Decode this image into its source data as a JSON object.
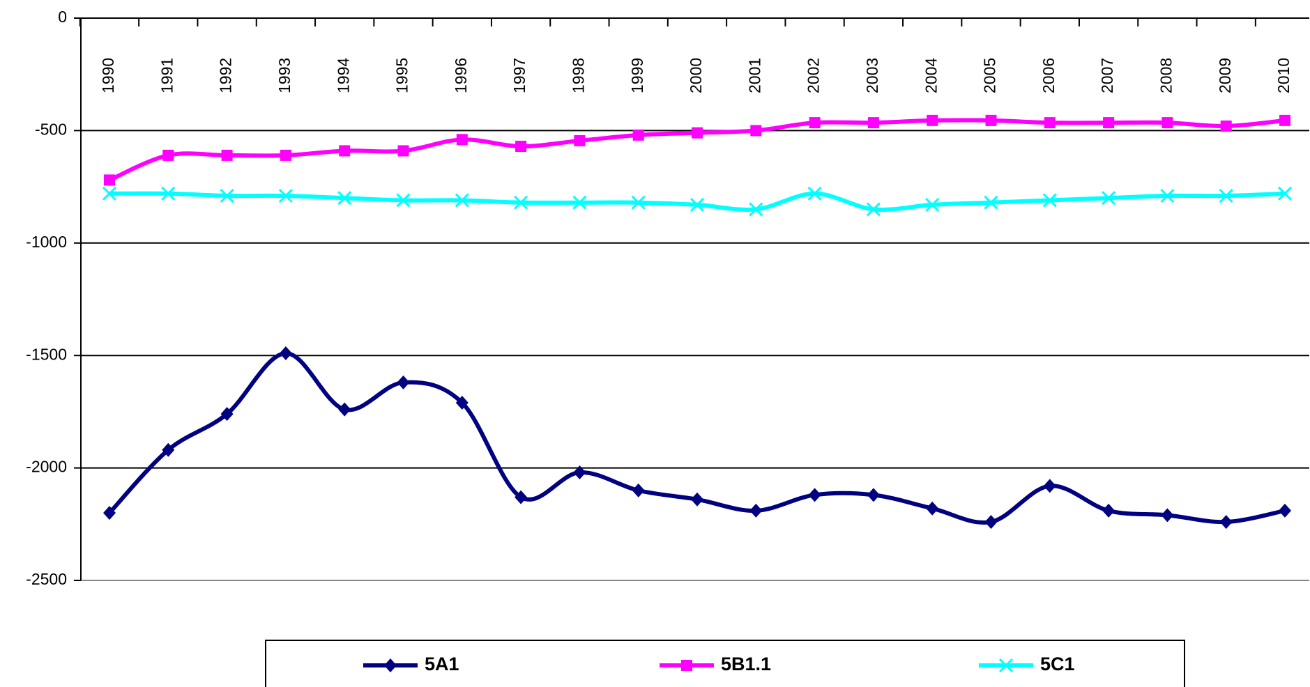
{
  "chart_data": {
    "type": "line",
    "categories": [
      "1990",
      "1991",
      "1992",
      "1993",
      "1994",
      "1995",
      "1996",
      "1997",
      "1998",
      "1999",
      "2000",
      "2001",
      "2002",
      "2003",
      "2004",
      "2005",
      "2006",
      "2007",
      "2008",
      "2009",
      "2010"
    ],
    "series": [
      {
        "name": "5A1",
        "color": "#000080",
        "marker": "diamond",
        "values": [
          -2200,
          -1920,
          -1760,
          -1490,
          -1740,
          -1620,
          -1710,
          -2130,
          -2020,
          -2100,
          -2140,
          -2190,
          -2120,
          -2120,
          -2180,
          -2240,
          -2080,
          -2190,
          -2210,
          -2240,
          -2190
        ]
      },
      {
        "name": "5B1.1",
        "color": "#ff00ff",
        "marker": "square",
        "values": [
          -720,
          -610,
          -610,
          -610,
          -590,
          -590,
          -540,
          -570,
          -545,
          -520,
          -510,
          -500,
          -465,
          -465,
          -455,
          -455,
          -465,
          -465,
          -465,
          -480,
          -455
        ]
      },
      {
        "name": "5C1",
        "color": "#00ffff",
        "marker": "x",
        "values": [
          -780,
          -780,
          -790,
          -790,
          -800,
          -810,
          -810,
          -820,
          -820,
          -820,
          -830,
          -850,
          -780,
          -850,
          -830,
          -820,
          -810,
          -800,
          -790,
          -790,
          -780
        ]
      }
    ],
    "ylim": [
      -2500,
      0
    ],
    "yticks": [
      0,
      -500,
      -1000,
      -1500,
      -2000,
      -2500
    ],
    "grid": true,
    "legend": "bottom"
  }
}
